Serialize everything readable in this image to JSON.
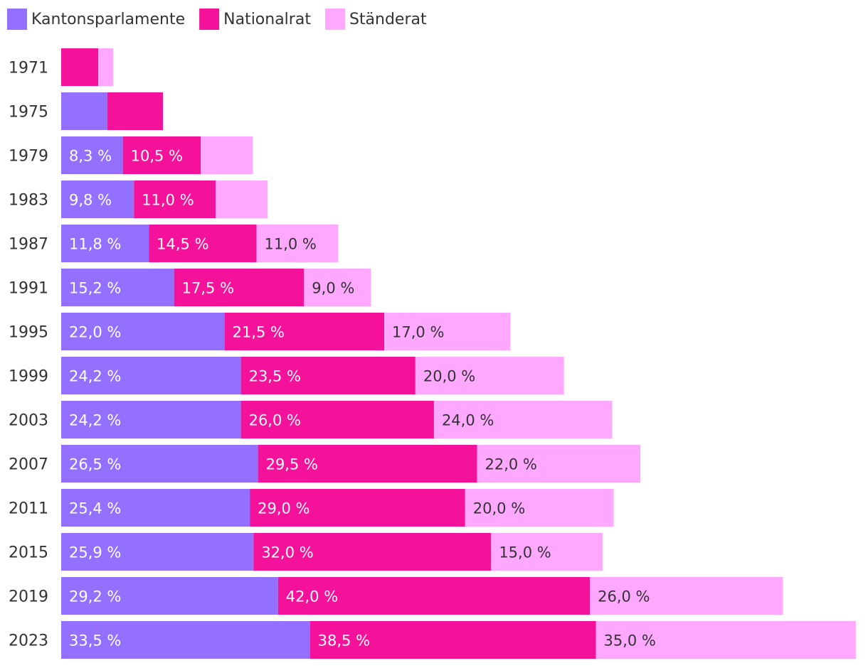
{
  "chart_data": {
    "type": "bar",
    "orientation": "horizontal",
    "stacked": true,
    "legend_position": "top-left",
    "colors": {
      "Kantonsparlamente": "#9370ff",
      "Nationalrat": "#f5129b",
      "Ständerat": "#ffa8ff"
    },
    "label_colors": {
      "Kantonsparlamente": "#ffffff",
      "Nationalrat": "#ffffff",
      "Ständerat": "#333333"
    },
    "categories": [
      "1971",
      "1975",
      "1979",
      "1983",
      "1987",
      "1991",
      "1995",
      "1999",
      "2003",
      "2007",
      "2011",
      "2015",
      "2019",
      "2023"
    ],
    "series": [
      {
        "name": "Kantonsparlamente",
        "values": [
          0,
          6.2,
          8.3,
          9.8,
          11.8,
          15.2,
          22.0,
          24.2,
          24.2,
          26.5,
          25.4,
          25.9,
          29.2,
          33.5
        ],
        "labels": [
          "",
          "",
          "8,3 %",
          "9,8 %",
          "11,8 %",
          "15,2 %",
          "22,0 %",
          "24,2 %",
          "24,2 %",
          "26,5 %",
          "25,4 %",
          "25,9 %",
          "29,2 %",
          "33,5 %"
        ]
      },
      {
        "name": "Nationalrat",
        "values": [
          5.0,
          7.5,
          10.5,
          11.0,
          14.5,
          17.5,
          21.5,
          23.5,
          26.0,
          29.5,
          29.0,
          32.0,
          42.0,
          38.5
        ],
        "labels": [
          "",
          "",
          "10,5 %",
          "11,0 %",
          "14,5 %",
          "17,5 %",
          "21,5 %",
          "23,5 %",
          "26,0 %",
          "29,5 %",
          "29,0 %",
          "32,0 %",
          "42,0 %",
          "38,5 %"
        ]
      },
      {
        "name": "Ständerat",
        "values": [
          2.0,
          0,
          7.0,
          7.0,
          11.0,
          9.0,
          17.0,
          20.0,
          24.0,
          22.0,
          20.0,
          15.0,
          26.0,
          35.0
        ],
        "labels": [
          "",
          "",
          "",
          "",
          "11,0 %",
          "9,0 %",
          "17,0 %",
          "20,0 %",
          "24,0 %",
          "22,0 %",
          "20,0 %",
          "15,0 %",
          "26,0 %",
          "35,0 %"
        ]
      }
    ],
    "xlim": [
      0,
      107.5
    ]
  }
}
